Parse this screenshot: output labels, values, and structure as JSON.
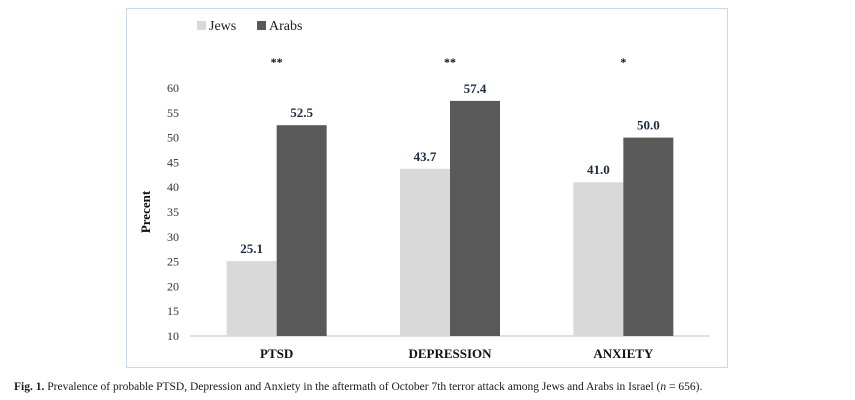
{
  "chart_data": {
    "type": "bar",
    "categories": [
      "PTSD",
      "DEPRESSION",
      "ANXIETY"
    ],
    "series": [
      {
        "name": "Jews",
        "values": [
          25.1,
          43.7,
          41.0
        ],
        "color": "#d9d9d9"
      },
      {
        "name": "Arabs",
        "values": [
          52.5,
          57.4,
          50.0
        ],
        "color": "#595959"
      }
    ],
    "value_labels": [
      [
        "25.1",
        "43.7",
        "41.0"
      ],
      [
        "52.5",
        "57.4",
        "50.0"
      ]
    ],
    "significance": [
      "**",
      "**",
      "*"
    ],
    "ylabel": "Precent",
    "xlabel": "",
    "ylim": [
      10,
      60
    ],
    "yticks": [
      "10",
      "15",
      "20",
      "25",
      "30",
      "35",
      "40",
      "45",
      "50",
      "55",
      "60"
    ],
    "legend_position": "top-left",
    "grid": false
  },
  "caption": {
    "label": "Fig. 1.",
    "text": "Prevalence of probable PTSD, Depression and Anxiety in the aftermath of October 7th terror attack among Jews and Arabs in Israel (",
    "n_symbol": "n",
    "n_value": " = 656)."
  }
}
